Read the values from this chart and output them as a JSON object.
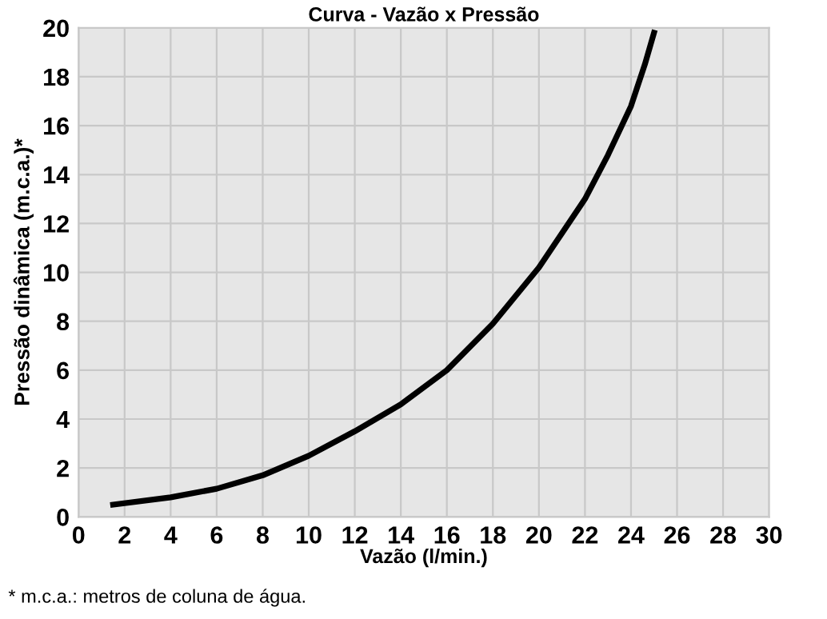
{
  "chart_data": {
    "type": "line",
    "title": "Curva - Vazão x Pressão",
    "xlabel": "Vazão (l/min.)",
    "ylabel": "Pressão dinâmica (m.c.a.)*",
    "annotations": [
      "* m.c.a.: metros de coluna de água."
    ],
    "series": [
      {
        "color": "#000000",
        "x": [
          1.5,
          4,
          6,
          8,
          10,
          12,
          14,
          16,
          18,
          20,
          22,
          23,
          24,
          24.6,
          25
        ],
        "values": [
          0.5,
          0.8,
          1.15,
          1.7,
          2.5,
          3.5,
          4.6,
          6.0,
          7.9,
          10.2,
          13.0,
          14.8,
          16.8,
          18.5,
          19.8
        ]
      }
    ],
    "xlim": [
      0,
      30
    ],
    "xticks": [
      0,
      2,
      4,
      6,
      8,
      10,
      12,
      14,
      16,
      18,
      20,
      22,
      24,
      26,
      28,
      30
    ],
    "ylim": [
      0,
      20
    ],
    "yticks": [
      0,
      2,
      4,
      6,
      8,
      10,
      12,
      14,
      16,
      18,
      20
    ],
    "grid": true,
    "marker": "none",
    "line_style": "solid"
  }
}
